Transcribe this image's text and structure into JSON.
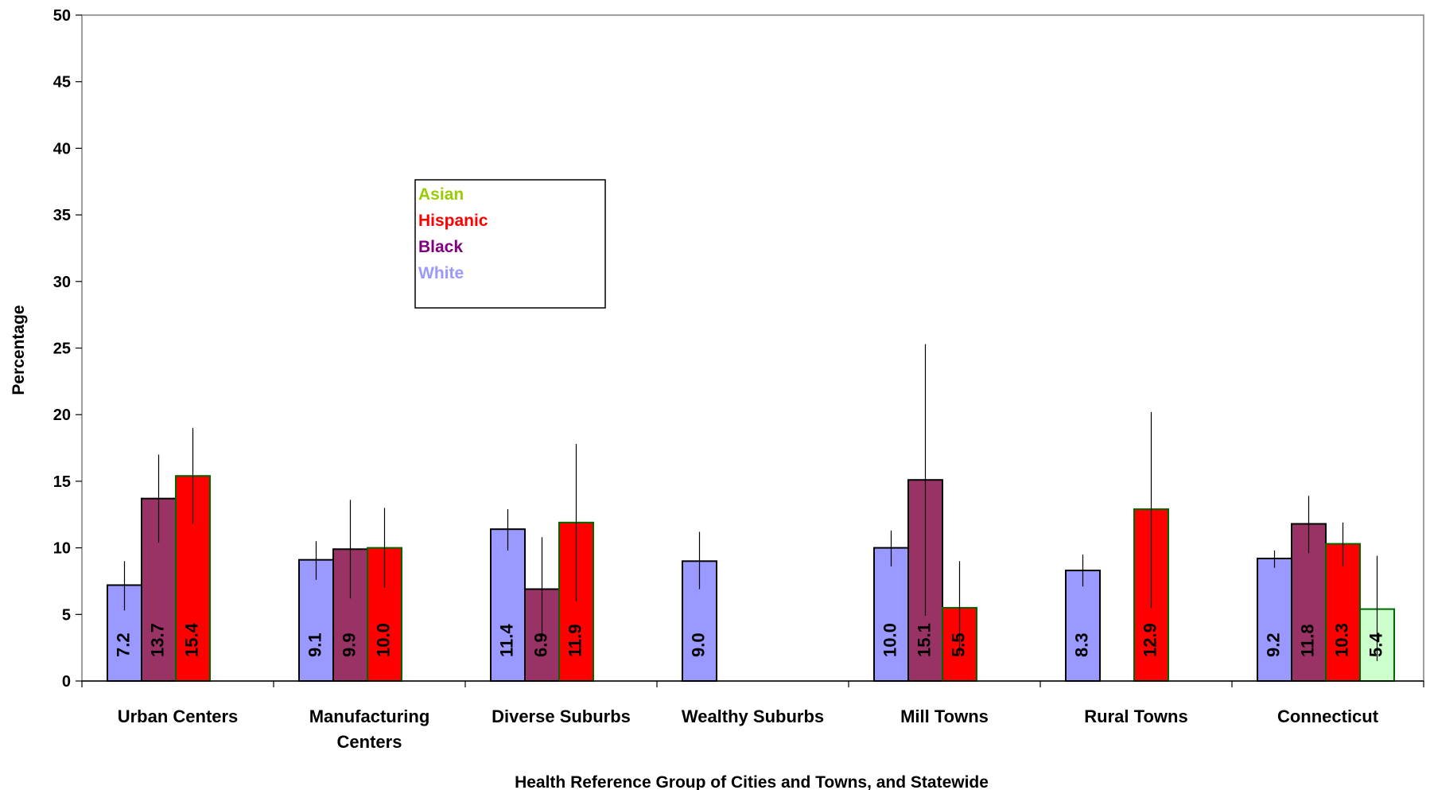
{
  "chart_data": {
    "type": "bar",
    "title": "",
    "xlabel": "Health Reference Group of Cities and Towns, and Statewide",
    "ylabel": "Percentage",
    "ylim": [
      0,
      50
    ],
    "yticks": [
      "0",
      "5",
      "10",
      "15",
      "20",
      "25",
      "30",
      "35",
      "40",
      "45",
      "50"
    ],
    "grid": false,
    "legend_position": "upper-center",
    "categories": [
      [
        "Urban Centers"
      ],
      [
        "Manufacturing",
        "Centers"
      ],
      [
        "Diverse Suburbs"
      ],
      [
        "Wealthy Suburbs"
      ],
      [
        "Mill Towns"
      ],
      [
        "Rural Towns"
      ],
      [
        "Connecticut"
      ]
    ],
    "series": [
      {
        "name": "White",
        "color": "#9999ff",
        "values": [
          7.2,
          9.1,
          11.4,
          9.0,
          10.0,
          8.3,
          9.2
        ],
        "labels": [
          "7.2",
          "9.1",
          "11.4",
          "9.0",
          "10.0",
          "8.3",
          "9.2"
        ],
        "err_low": [
          5.3,
          7.6,
          9.8,
          6.9,
          8.6,
          7.1,
          8.5
        ],
        "err_high": [
          9.0,
          10.5,
          12.9,
          11.2,
          11.3,
          9.5,
          9.8
        ]
      },
      {
        "name": "Black",
        "color": "#993366",
        "values": [
          13.7,
          9.9,
          6.9,
          null,
          15.1,
          null,
          11.8
        ],
        "labels": [
          "13.7",
          "9.9",
          "6.9",
          "",
          "15.1",
          "",
          "11.8"
        ],
        "err_low": [
          10.4,
          6.2,
          3.0,
          null,
          4.9,
          null,
          9.6
        ],
        "err_high": [
          17.0,
          13.6,
          10.8,
          null,
          25.3,
          null,
          13.9
        ]
      },
      {
        "name": "Hispanic",
        "color": "#ff0000",
        "values": [
          15.4,
          10.0,
          11.9,
          null,
          5.5,
          12.9,
          10.3
        ],
        "labels": [
          "15.4",
          "10.0",
          "11.9",
          "",
          "5.5",
          "12.9",
          "10.3"
        ],
        "err_low": [
          11.8,
          7.0,
          6.0,
          null,
          2.0,
          5.5,
          8.6
        ],
        "err_high": [
          19.0,
          13.0,
          17.8,
          null,
          9.0,
          20.2,
          11.9
        ]
      },
      {
        "name": "Asian",
        "color": "#ccffcc",
        "values": [
          null,
          null,
          null,
          null,
          null,
          null,
          5.4
        ],
        "labels": [
          "",
          "",
          "",
          "",
          "",
          "",
          "5.4"
        ],
        "err_low": [
          null,
          null,
          null,
          null,
          null,
          null,
          1.5
        ],
        "err_high": [
          null,
          null,
          null,
          null,
          null,
          null,
          9.4
        ]
      }
    ],
    "legend": [
      {
        "label": "Asian",
        "color": "#99cc00"
      },
      {
        "label": "Hispanic",
        "color": "#ff0000"
      },
      {
        "label": "Black",
        "color": "#800080"
      },
      {
        "label": "White",
        "color": "#9999ff"
      }
    ]
  }
}
